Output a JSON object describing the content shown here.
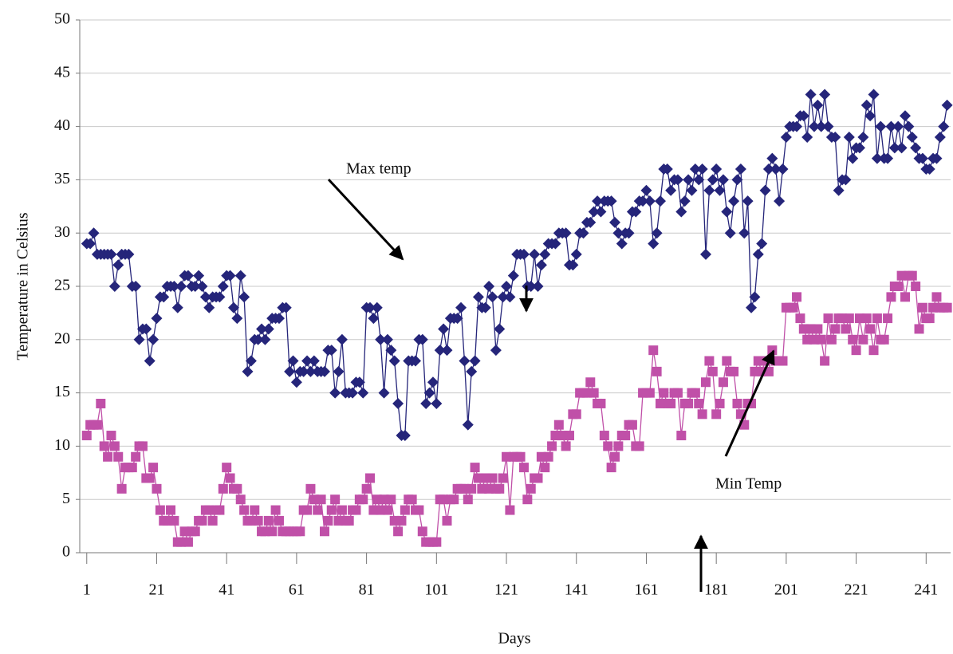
{
  "chart_data": {
    "type": "line",
    "x_label": "Days",
    "y_label": "Temperature in Celsius",
    "annotations": [
      "Max temp",
      "Min Temp"
    ],
    "xlim": [
      -1,
      248
    ],
    "ylim": [
      0,
      50
    ],
    "xticks": [
      1,
      21,
      41,
      61,
      81,
      101,
      121,
      141,
      161,
      181,
      201,
      221,
      241
    ],
    "yticks": [
      0,
      5,
      10,
      15,
      20,
      25,
      30,
      35,
      40,
      45,
      50
    ],
    "grid": true,
    "x": [
      1,
      2,
      3,
      4,
      5,
      6,
      7,
      8,
      9,
      10,
      11,
      12,
      13,
      14,
      15,
      16,
      17,
      18,
      19,
      20,
      21,
      22,
      23,
      24,
      25,
      26,
      27,
      28,
      29,
      30,
      31,
      32,
      33,
      34,
      35,
      36,
      37,
      38,
      39,
      40,
      41,
      42,
      43,
      44,
      45,
      46,
      47,
      48,
      49,
      50,
      51,
      52,
      53,
      54,
      55,
      56,
      57,
      58,
      59,
      60,
      61,
      62,
      63,
      64,
      65,
      66,
      67,
      68,
      69,
      70,
      71,
      72,
      73,
      74,
      75,
      76,
      77,
      78,
      79,
      80,
      81,
      82,
      83,
      84,
      85,
      86,
      87,
      88,
      89,
      90,
      91,
      92,
      93,
      94,
      95,
      96,
      97,
      98,
      99,
      100,
      101,
      102,
      103,
      104,
      105,
      106,
      107,
      108,
      109,
      110,
      111,
      112,
      113,
      114,
      115,
      116,
      117,
      118,
      119,
      120,
      121,
      122,
      123,
      124,
      125,
      126,
      127,
      128,
      129,
      130,
      131,
      132,
      133,
      134,
      135,
      136,
      137,
      138,
      139,
      140,
      141,
      142,
      143,
      144,
      145,
      146,
      147,
      148,
      149,
      150,
      151,
      152,
      153,
      154,
      155,
      156,
      157,
      158,
      159,
      160,
      161,
      162,
      163,
      164,
      165,
      166,
      167,
      168,
      169,
      170,
      171,
      172,
      173,
      174,
      175,
      176,
      177,
      178,
      179,
      180,
      181,
      182,
      183,
      184,
      185,
      186,
      187,
      188,
      189,
      190,
      191,
      192,
      193,
      194,
      195,
      196,
      197,
      198,
      199,
      200,
      201,
      202,
      203,
      204,
      205,
      206,
      207,
      208,
      209,
      210,
      211,
      212,
      213,
      214,
      215,
      216,
      217,
      218,
      219,
      220,
      221,
      222,
      223,
      224,
      225,
      226,
      227,
      228,
      229,
      230,
      231,
      232,
      233,
      234,
      235,
      236,
      237,
      238,
      239,
      240,
      241,
      242,
      243,
      244,
      245,
      246,
      247
    ],
    "series": [
      {
        "color": "#25257a",
        "marker": "diamond",
        "values": [
          29,
          29,
          30,
          28,
          28,
          28,
          28,
          28,
          25,
          27,
          28,
          28,
          28,
          25,
          25,
          20,
          21,
          21,
          18,
          20,
          22,
          24,
          24,
          25,
          25,
          25,
          23,
          25,
          26,
          26,
          25,
          25,
          26,
          25,
          24,
          23,
          24,
          24,
          24,
          25,
          26,
          26,
          23,
          22,
          26,
          24,
          17,
          18,
          20,
          20,
          21,
          20,
          21,
          22,
          22,
          22,
          23,
          23,
          17,
          18,
          16,
          17,
          17,
          18,
          17,
          18,
          17,
          17,
          17,
          19,
          19,
          15,
          17,
          20,
          15,
          15,
          15,
          16,
          16,
          15,
          23,
          23,
          22,
          23,
          20,
          15,
          20,
          19,
          18,
          14,
          11,
          11,
          18,
          18,
          18,
          20,
          20,
          14,
          15,
          16,
          14,
          19,
          21,
          19,
          22,
          22,
          22,
          23,
          18,
          12,
          17,
          18,
          24,
          23,
          23,
          25,
          24,
          19,
          21,
          24,
          25,
          24,
          26,
          28,
          28,
          28,
          25,
          25,
          28,
          25,
          27,
          28,
          29,
          29,
          29,
          30,
          30,
          30,
          27,
          27,
          28,
          30,
          30,
          31,
          31,
          32,
          33,
          32,
          33,
          33,
          33,
          31,
          30,
          29,
          30,
          30,
          32,
          32,
          33,
          33,
          34,
          33,
          29,
          30,
          33,
          36,
          36,
          34,
          35,
          35,
          32,
          33,
          35,
          34,
          36,
          35,
          36,
          28,
          34,
          35,
          36,
          34,
          35,
          32,
          30,
          33,
          35,
          36,
          30,
          33,
          23,
          24,
          28,
          29,
          34,
          36,
          37,
          36,
          33,
          36,
          39,
          40,
          40,
          40,
          41,
          41,
          39,
          43,
          40,
          42,
          40,
          43,
          40,
          39,
          39,
          34,
          35,
          35,
          39,
          37,
          38,
          38,
          39,
          42,
          41,
          43,
          37,
          40,
          37,
          37,
          40,
          38,
          40,
          38,
          41,
          40,
          39,
          38,
          37,
          37,
          36,
          36,
          37,
          37,
          39,
          40,
          42
        ]
      },
      {
        "color": "#c050a8",
        "marker": "square",
        "values": [
          11,
          12,
          12,
          12,
          14,
          10,
          9,
          11,
          10,
          9,
          6,
          8,
          8,
          8,
          9,
          10,
          10,
          7,
          7,
          8,
          6,
          4,
          3,
          3,
          4,
          3,
          1,
          1,
          2,
          1,
          2,
          2,
          3,
          3,
          4,
          4,
          3,
          4,
          4,
          6,
          8,
          7,
          6,
          6,
          5,
          4,
          3,
          3,
          4,
          3,
          2,
          2,
          3,
          2,
          4,
          3,
          2,
          2,
          2,
          2,
          2,
          2,
          4,
          4,
          6,
          5,
          4,
          5,
          2,
          3,
          4,
          5,
          3,
          4,
          3,
          3,
          4,
          4,
          5,
          5,
          6,
          7,
          4,
          5,
          4,
          5,
          4,
          5,
          3,
          2,
          3,
          4,
          5,
          5,
          4,
          4,
          2,
          1,
          1,
          1,
          1,
          5,
          5,
          3,
          5,
          5,
          6,
          6,
          6,
          5,
          6,
          8,
          7,
          6,
          7,
          6,
          7,
          6,
          6,
          7,
          9,
          4,
          9,
          9,
          9,
          8,
          5,
          6,
          7,
          7,
          9,
          8,
          9,
          10,
          11,
          12,
          11,
          10,
          11,
          13,
          13,
          15,
          15,
          15,
          16,
          15,
          14,
          14,
          11,
          10,
          8,
          9,
          10,
          11,
          11,
          12,
          12,
          10,
          10,
          15,
          15,
          15,
          19,
          17,
          14,
          15,
          14,
          14,
          15,
          15,
          11,
          14,
          14,
          15,
          15,
          14,
          13,
          16,
          18,
          17,
          13,
          14,
          16,
          18,
          17,
          17,
          14,
          13,
          12,
          14,
          14,
          17,
          18,
          17,
          18,
          17,
          19,
          18,
          18,
          18,
          23,
          23,
          23,
          24,
          22,
          21,
          20,
          21,
          20,
          21,
          20,
          18,
          22,
          20,
          21,
          22,
          22,
          21,
          22,
          20,
          19,
          22,
          20,
          22,
          21,
          19,
          22,
          20,
          20,
          22,
          24,
          25,
          25,
          26,
          24,
          26,
          26,
          25,
          21,
          23,
          22,
          22,
          23,
          24,
          23,
          23,
          23
        ]
      }
    ]
  }
}
